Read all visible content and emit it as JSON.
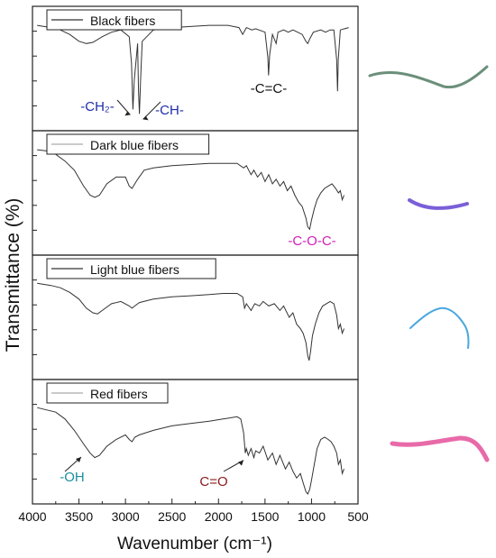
{
  "chart_data": {
    "type": "line",
    "xlabel": "Wavenumber (cm⁻¹)",
    "ylabel": "Transmittance (%)",
    "xlim": [
      4000,
      500
    ],
    "reversed_x": true,
    "x_ticks": [
      "4000",
      "3500",
      "3000",
      "2500",
      "2000",
      "1500",
      "1000",
      "500"
    ],
    "x_tick_values": [
      4000,
      3500,
      3000,
      2500,
      2000,
      1500,
      1000,
      500
    ],
    "ylim": [
      0,
      100
    ],
    "line_color": "#333333",
    "panels": [
      {
        "name": "Black fibers",
        "ylim": [
          0,
          100
        ],
        "points": [
          [
            3950,
            88
          ],
          [
            3800,
            86
          ],
          [
            3700,
            84
          ],
          [
            3600,
            80
          ],
          [
            3500,
            74
          ],
          [
            3420,
            72
          ],
          [
            3350,
            73
          ],
          [
            3250,
            78
          ],
          [
            3150,
            82
          ],
          [
            3050,
            84
          ],
          [
            2960,
            78
          ],
          [
            2935,
            55
          ],
          [
            2920,
            14
          ],
          [
            2905,
            40
          ],
          [
            2885,
            58
          ],
          [
            2870,
            72
          ],
          [
            2860,
            30
          ],
          [
            2850,
            10
          ],
          [
            2838,
            40
          ],
          [
            2820,
            74
          ],
          [
            2700,
            84
          ],
          [
            2500,
            86
          ],
          [
            2300,
            87
          ],
          [
            2100,
            88
          ],
          [
            1900,
            88
          ],
          [
            1780,
            86
          ],
          [
            1740,
            80
          ],
          [
            1700,
            86
          ],
          [
            1640,
            84
          ],
          [
            1600,
            85
          ],
          [
            1500,
            82
          ],
          [
            1470,
            60
          ],
          [
            1462,
            44
          ],
          [
            1450,
            62
          ],
          [
            1420,
            80
          ],
          [
            1380,
            72
          ],
          [
            1360,
            82
          ],
          [
            1300,
            84
          ],
          [
            1250,
            82
          ],
          [
            1200,
            84
          ],
          [
            1150,
            82
          ],
          [
            1100,
            80
          ],
          [
            1060,
            74
          ],
          [
            1040,
            72
          ],
          [
            1020,
            76
          ],
          [
            980,
            82
          ],
          [
            900,
            84
          ],
          [
            850,
            82
          ],
          [
            800,
            84
          ],
          [
            760,
            84
          ],
          [
            730,
            58
          ],
          [
            720,
            30
          ],
          [
            712,
            58
          ],
          [
            690,
            84
          ],
          [
            600,
            86
          ]
        ],
        "annotations": [
          {
            "label": "-CH₂-",
            "x": 2920,
            "y": 14,
            "color": "#1f2da8"
          },
          {
            "label": "-CH-",
            "x": 2850,
            "y": 10,
            "color": "#1f2da8"
          },
          {
            "label": "-C=C-",
            "color": "#111111"
          }
        ],
        "legend_line": "#333333"
      },
      {
        "name": "Dark blue fibers",
        "ylim": [
          0,
          100
        ],
        "points": [
          [
            3950,
            88
          ],
          [
            3850,
            87
          ],
          [
            3750,
            84
          ],
          [
            3650,
            78
          ],
          [
            3550,
            70
          ],
          [
            3450,
            56
          ],
          [
            3380,
            48
          ],
          [
            3330,
            46
          ],
          [
            3280,
            48
          ],
          [
            3200,
            58
          ],
          [
            3100,
            64
          ],
          [
            3000,
            64
          ],
          [
            2960,
            56
          ],
          [
            2930,
            54
          ],
          [
            2900,
            58
          ],
          [
            2870,
            62
          ],
          [
            2800,
            70
          ],
          [
            2700,
            72
          ],
          [
            2500,
            74
          ],
          [
            2300,
            75
          ],
          [
            2100,
            76
          ],
          [
            1950,
            76
          ],
          [
            1800,
            76
          ],
          [
            1730,
            72
          ],
          [
            1700,
            74
          ],
          [
            1650,
            66
          ],
          [
            1620,
            70
          ],
          [
            1580,
            64
          ],
          [
            1540,
            68
          ],
          [
            1500,
            60
          ],
          [
            1460,
            66
          ],
          [
            1420,
            58
          ],
          [
            1380,
            62
          ],
          [
            1340,
            56
          ],
          [
            1300,
            60
          ],
          [
            1260,
            52
          ],
          [
            1220,
            56
          ],
          [
            1180,
            48
          ],
          [
            1140,
            42
          ],
          [
            1100,
            38
          ],
          [
            1060,
            28
          ],
          [
            1040,
            20
          ],
          [
            1020,
            18
          ],
          [
            1000,
            26
          ],
          [
            970,
            36
          ],
          [
            940,
            44
          ],
          [
            900,
            50
          ],
          [
            860,
            54
          ],
          [
            820,
            56
          ],
          [
            780,
            58
          ],
          [
            740,
            54
          ],
          [
            710,
            50
          ],
          [
            690,
            52
          ],
          [
            670,
            44
          ],
          [
            650,
            48
          ]
        ],
        "annotations": [
          {
            "label": "-C-O-C-",
            "x": 1030,
            "y": 18,
            "color": "#d11fb8"
          }
        ],
        "legend_line": "#aaaaaa"
      },
      {
        "name": "Light blue fibers",
        "ylim": [
          0,
          100
        ],
        "points": [
          [
            3950,
            80
          ],
          [
            3800,
            78
          ],
          [
            3700,
            76
          ],
          [
            3600,
            72
          ],
          [
            3500,
            66
          ],
          [
            3420,
            58
          ],
          [
            3350,
            54
          ],
          [
            3300,
            53
          ],
          [
            3250,
            56
          ],
          [
            3150,
            62
          ],
          [
            3050,
            64
          ],
          [
            2960,
            60
          ],
          [
            2930,
            58
          ],
          [
            2900,
            60
          ],
          [
            2850,
            63
          ],
          [
            2700,
            66
          ],
          [
            2500,
            68
          ],
          [
            2300,
            69
          ],
          [
            2100,
            70
          ],
          [
            1950,
            71
          ],
          [
            1800,
            71
          ],
          [
            1740,
            68
          ],
          [
            1720,
            58
          ],
          [
            1700,
            62
          ],
          [
            1650,
            56
          ],
          [
            1610,
            62
          ],
          [
            1560,
            60
          ],
          [
            1520,
            64
          ],
          [
            1460,
            60
          ],
          [
            1400,
            62
          ],
          [
            1340,
            56
          ],
          [
            1300,
            60
          ],
          [
            1240,
            50
          ],
          [
            1200,
            54
          ],
          [
            1160,
            44
          ],
          [
            1120,
            40
          ],
          [
            1090,
            36
          ],
          [
            1060,
            28
          ],
          [
            1040,
            16
          ],
          [
            1025,
            12
          ],
          [
            1010,
            20
          ],
          [
            990,
            34
          ],
          [
            960,
            44
          ],
          [
            920,
            54
          ],
          [
            880,
            60
          ],
          [
            840,
            62
          ],
          [
            800,
            64
          ],
          [
            760,
            62
          ],
          [
            730,
            52
          ],
          [
            710,
            40
          ],
          [
            690,
            44
          ],
          [
            670,
            36
          ],
          [
            650,
            40
          ]
        ],
        "annotations": [],
        "legend_line": "#333333"
      },
      {
        "name": "Red fibers",
        "ylim": [
          0,
          100
        ],
        "points": [
          [
            3950,
            80
          ],
          [
            3850,
            78
          ],
          [
            3750,
            76
          ],
          [
            3650,
            70
          ],
          [
            3550,
            60
          ],
          [
            3450,
            48
          ],
          [
            3380,
            40
          ],
          [
            3330,
            36
          ],
          [
            3280,
            38
          ],
          [
            3200,
            46
          ],
          [
            3100,
            52
          ],
          [
            3000,
            56
          ],
          [
            2960,
            52
          ],
          [
            2930,
            50
          ],
          [
            2900,
            54
          ],
          [
            2850,
            56
          ],
          [
            2700,
            60
          ],
          [
            2500,
            64
          ],
          [
            2300,
            66
          ],
          [
            2100,
            68
          ],
          [
            1950,
            70
          ],
          [
            1800,
            72
          ],
          [
            1760,
            70
          ],
          [
            1730,
            58
          ],
          [
            1712,
            40
          ],
          [
            1700,
            44
          ],
          [
            1680,
            38
          ],
          [
            1650,
            44
          ],
          [
            1620,
            36
          ],
          [
            1600,
            42
          ],
          [
            1560,
            40
          ],
          [
            1520,
            46
          ],
          [
            1470,
            34
          ],
          [
            1420,
            40
          ],
          [
            1380,
            30
          ],
          [
            1340,
            38
          ],
          [
            1280,
            26
          ],
          [
            1240,
            32
          ],
          [
            1200,
            24
          ],
          [
            1160,
            18
          ],
          [
            1120,
            22
          ],
          [
            1090,
            14
          ],
          [
            1060,
            6
          ],
          [
            1040,
            4
          ],
          [
            1020,
            8
          ],
          [
            1000,
            16
          ],
          [
            970,
            30
          ],
          [
            940,
            44
          ],
          [
            900,
            52
          ],
          [
            860,
            54
          ],
          [
            820,
            52
          ],
          [
            790,
            50
          ],
          [
            760,
            46
          ],
          [
            730,
            40
          ],
          [
            710,
            30
          ],
          [
            690,
            34
          ],
          [
            670,
            22
          ],
          [
            650,
            26
          ]
        ],
        "annotations": [
          {
            "label": "-OH",
            "x": 3320,
            "y": 36,
            "color": "#1a8fa0"
          },
          {
            "label": "C=O",
            "x": 1712,
            "y": 40,
            "color": "#8b1a1a"
          }
        ],
        "legend_line": "#aaaaaa"
      }
    ]
  },
  "fiber_images": [
    {
      "name": "black-fiber-photo",
      "color": "#6b8f7a"
    },
    {
      "name": "dark-blue-fiber-photo",
      "color": "#7b5fd8"
    },
    {
      "name": "light-blue-fiber-photo",
      "color": "#4aa8e0"
    },
    {
      "name": "red-fiber-photo",
      "color": "#e86aa8"
    }
  ]
}
